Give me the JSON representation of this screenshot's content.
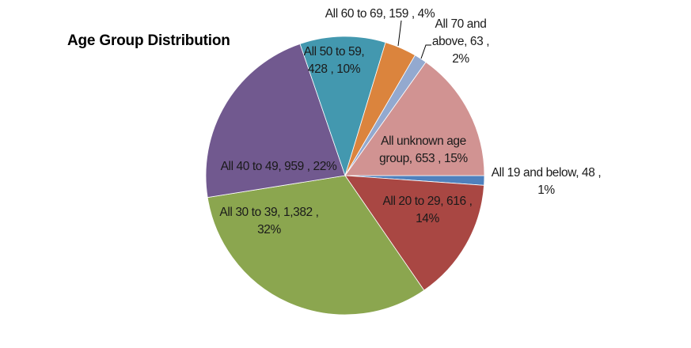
{
  "chart_data": {
    "type": "pie",
    "title": "Age Group Distribution",
    "start_angle_deg": 0,
    "direction": "clockwise",
    "slices": [
      {
        "name": "All 19 and below",
        "value": 48,
        "percent": "1%",
        "color": "#4F81BD",
        "label_lines": [
          "All 19 and below,  48 ,",
          "1%"
        ]
      },
      {
        "name": "All 20 to 29",
        "value": 616,
        "percent": "14%",
        "color": "#A94743",
        "label_lines": [
          "All 20 to 29,  616 ,",
          "14%"
        ]
      },
      {
        "name": "All 30 to 39",
        "value": 1382,
        "percent": "32%",
        "color": "#8BA64F",
        "label_lines": [
          "All 30 to 39,  1,382 ,",
          "32%"
        ]
      },
      {
        "name": "All 40 to 49",
        "value": 959,
        "percent": "22%",
        "color": "#71598F",
        "label_lines": [
          "All 40 to 49,  959 ,  22%"
        ]
      },
      {
        "name": "All 50 to 59",
        "value": 428,
        "percent": "10%",
        "color": "#4398AF",
        "label_lines": [
          "All 50 to 59,",
          "428 , 10%"
        ]
      },
      {
        "name": "All 60 to 69",
        "value": 159,
        "percent": "4%",
        "color": "#DB843D",
        "label_lines": [
          "All 60 to 69,  159 , 4%"
        ]
      },
      {
        "name": "All 70 and above",
        "value": 63,
        "percent": "2%",
        "color": "#93A9CF",
        "label_lines": [
          "All 70 and",
          "above,  63 ,",
          "2%"
        ]
      },
      {
        "name": "All unknown age group",
        "value": 653,
        "percent": "15%",
        "color": "#D19392",
        "label_lines": [
          "All unknown age",
          "group,  653 ,  15%"
        ]
      }
    ]
  }
}
